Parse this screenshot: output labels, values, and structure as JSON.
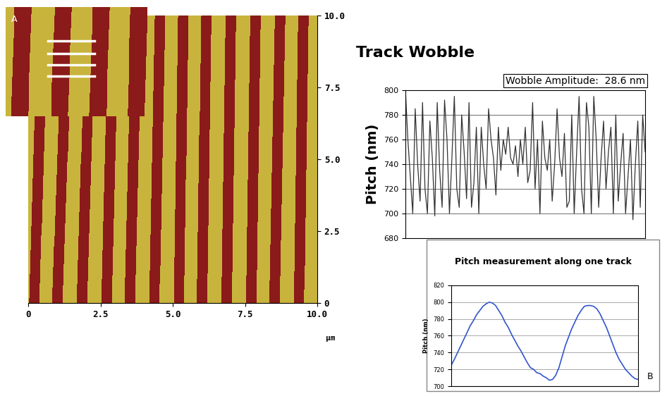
{
  "chart_data": [
    {
      "type": "image",
      "x_label": "µm",
      "annotations": [
        "A"
      ],
      "xlim": [
        0,
        10.0
      ],
      "ylim": [
        0,
        10.0
      ],
      "xticks": [
        0,
        2.5,
        5.0,
        7.5,
        10.0
      ],
      "yticks": [
        0,
        2.5,
        5.0,
        7.5,
        10.0
      ],
      "color": "#8b1a1a",
      "stripe_width": 0.36,
      "stripes": [
        {
          "x_bottom": 0.2,
          "x_top": 0.5
        },
        {
          "x_bottom": 1.0,
          "x_top": 1.35
        },
        {
          "x_bottom": 1.85,
          "x_top": 2.15
        },
        {
          "x_bottom": 2.7,
          "x_top": 2.95
        },
        {
          "x_bottom": 3.5,
          "x_top": 3.75
        },
        {
          "x_bottom": 4.35,
          "x_top": 4.55
        },
        {
          "x_bottom": 5.2,
          "x_top": 5.35
        },
        {
          "x_bottom": 6.0,
          "x_top": 6.15
        },
        {
          "x_bottom": 6.85,
          "x_top": 7.0
        },
        {
          "x_bottom": 7.7,
          "x_top": 7.85
        },
        {
          "x_bottom": 8.5,
          "x_top": 8.7
        },
        {
          "x_bottom": 9.35,
          "x_top": 9.5
        }
      ]
    },
    {
      "type": "line",
      "title": "Track Wobble",
      "y_label": "Pitch (nm)",
      "annotations": [
        "Wobble Amplitude:  28.6 nm"
      ],
      "ylim": [
        680,
        800
      ],
      "yticks": [
        680,
        700,
        720,
        740,
        760,
        780,
        800
      ],
      "grid": true,
      "tick_labels": "y",
      "color": "#333333",
      "values": [
        800,
        760,
        730,
        700,
        785,
        740,
        710,
        790,
        720,
        700,
        775,
        745,
        698,
        790,
        735,
        705,
        792,
        760,
        700,
        745,
        795,
        720,
        705,
        780,
        750,
        712,
        790,
        705,
        725,
        770,
        700,
        770,
        740,
        720,
        785,
        760,
        745,
        715,
        770,
        735,
        760,
        748,
        770,
        745,
        740,
        755,
        730,
        760,
        740,
        770,
        725,
        735,
        790,
        720,
        760,
        700,
        775,
        745,
        735,
        760,
        710,
        740,
        785,
        745,
        730,
        765,
        705,
        710,
        780,
        700,
        750,
        795,
        720,
        700,
        790,
        770,
        700,
        795,
        760,
        705,
        745,
        775,
        720,
        750,
        770,
        700,
        780,
        710,
        740,
        765,
        700,
        730,
        760,
        695,
        740,
        775,
        705,
        780,
        750
      ]
    },
    {
      "type": "line",
      "title": "Pitch measurement along one track",
      "y_label": "Pitch (nm)",
      "annotations": [
        "B"
      ],
      "ylim": [
        700,
        820
      ],
      "yticks": [
        700,
        720,
        740,
        760,
        780,
        800,
        820
      ],
      "grid": true,
      "tick_labels": "y",
      "color": "#3355cc",
      "values": [
        725,
        732,
        740,
        748,
        756,
        764,
        772,
        778,
        785,
        790,
        795,
        798,
        800,
        799,
        796,
        790,
        784,
        776,
        770,
        762,
        755,
        748,
        742,
        735,
        728,
        722,
        720,
        716,
        715,
        712,
        710,
        707,
        708,
        713,
        722,
        735,
        748,
        758,
        768,
        776,
        784,
        790,
        795,
        796,
        796,
        795,
        792,
        786,
        778,
        770,
        760,
        750,
        740,
        732,
        726,
        720,
        716,
        712,
        709,
        708
      ]
    }
  ]
}
